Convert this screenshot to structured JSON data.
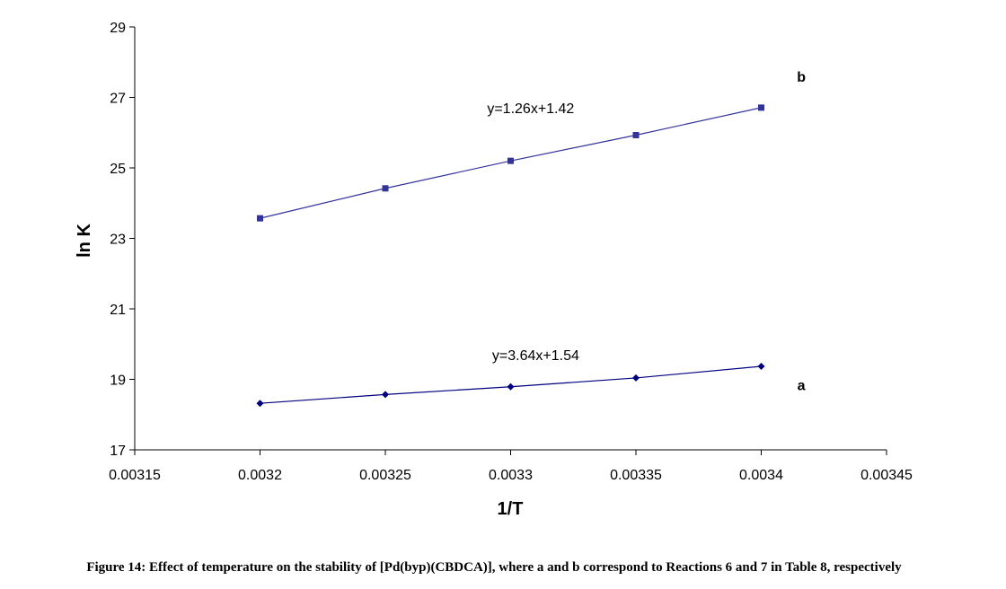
{
  "chart_data": {
    "type": "line",
    "xlabel": "1/T",
    "ylabel": "ln K",
    "xlim": [
      0.00315,
      0.00345
    ],
    "ylim": [
      17,
      29
    ],
    "x_ticks": [
      "0.00315",
      "0.0032",
      "0.00325",
      "0.0033",
      "0.00335",
      "0.0034",
      "0.00345"
    ],
    "y_ticks": [
      "17",
      "19",
      "21",
      "23",
      "25",
      "27",
      "29"
    ],
    "grid": false,
    "series": [
      {
        "name": "a",
        "color": "#000080",
        "marker": "diamond",
        "x": [
          0.0032,
          0.00325,
          0.0033,
          0.00335,
          0.0034
        ],
        "y": [
          18.32,
          18.57,
          18.79,
          19.04,
          19.37
        ],
        "equation": "y=3.64x+1.54"
      },
      {
        "name": "b",
        "color": "#33339a",
        "marker": "square",
        "x": [
          0.0032,
          0.00325,
          0.0033,
          0.00335,
          0.0034
        ],
        "y": [
          23.57,
          24.42,
          25.2,
          25.93,
          26.71
        ],
        "equation": "y=1.26x+1.42"
      }
    ]
  },
  "caption": "Figure 14: Effect of temperature on the stability of [Pd(byp)(CBDCA)], where a and b correspond to Reactions 6 and 7 in Table 8, respectively"
}
